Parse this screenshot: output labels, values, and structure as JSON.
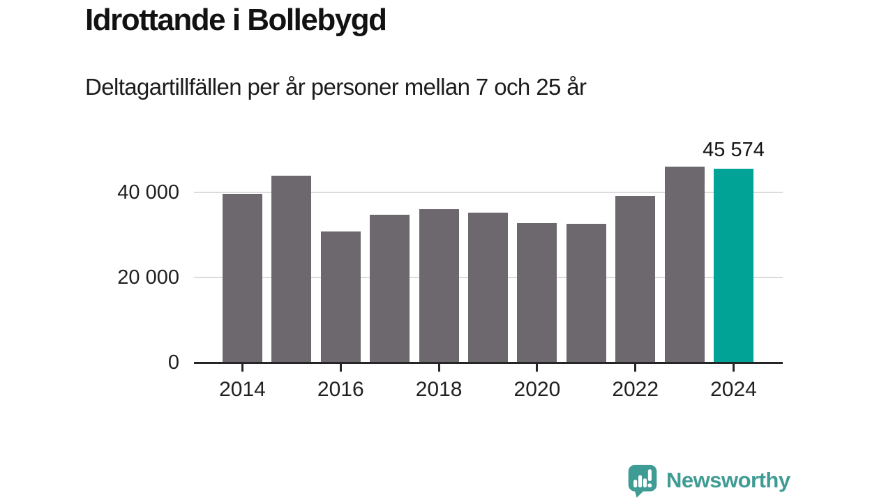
{
  "title": "Idrottande i Bollebygd",
  "subtitle": "Deltagartillfällen per år personer mellan 7 och 25 år",
  "chart_data": {
    "type": "bar",
    "categories": [
      "2014",
      "2015",
      "2016",
      "2017",
      "2018",
      "2019",
      "2020",
      "2021",
      "2022",
      "2023",
      "2024"
    ],
    "values": [
      39600,
      43900,
      30800,
      34700,
      36000,
      35200,
      32800,
      32600,
      39100,
      46000,
      45574
    ],
    "title": "Idrottande i Bollebygd",
    "subtitle": "Deltagartillfällen per år personer mellan 7 och 25 år",
    "xlabel": "",
    "ylabel": "",
    "ylim": [
      0,
      47500
    ],
    "grid": true,
    "legend_position": "none",
    "y_ticks": [
      {
        "value": 0,
        "label": "0"
      },
      {
        "value": 20000,
        "label": "20 000"
      },
      {
        "value": 40000,
        "label": "40 000"
      }
    ],
    "x_tick_labels": [
      "2014",
      "2016",
      "2018",
      "2020",
      "2022",
      "2024"
    ],
    "bar_color": "#6C686D",
    "highlight_index": 10,
    "highlight_color": "#00A396",
    "highlight_label": "45 574",
    "gridline_color": "#DCDCDC",
    "axis_color": "#262626",
    "label_color": "#202020"
  },
  "branding": {
    "logo_text": "Newsworthy",
    "logo_color": "#3F9C94",
    "logo_icon": "newsworthy-speech-bubble-chart-icon"
  }
}
